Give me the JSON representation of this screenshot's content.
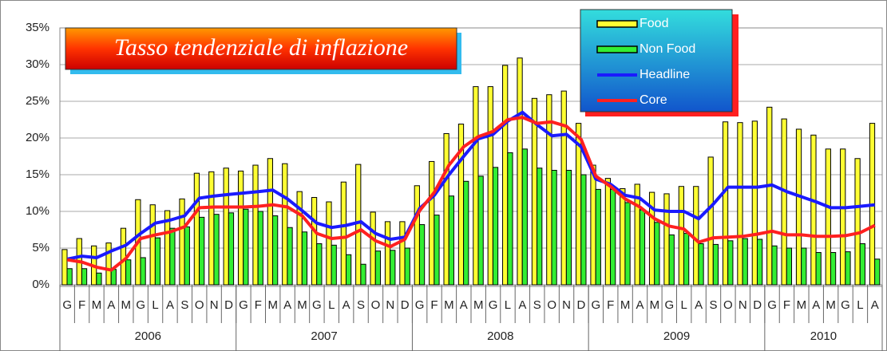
{
  "chart_data": {
    "type": "bar-line",
    "title": "Tasso tendenziale di inflazione",
    "category_groups": [
      {
        "name": "2006",
        "months": [
          "G",
          "F",
          "M",
          "A",
          "M",
          "G",
          "L",
          "A",
          "S",
          "O",
          "N",
          "D"
        ]
      },
      {
        "name": "2007",
        "months": [
          "G",
          "F",
          "M",
          "A",
          "M",
          "G",
          "L",
          "A",
          "S",
          "O",
          "N",
          "D"
        ]
      },
      {
        "name": "2008",
        "months": [
          "G",
          "F",
          "M",
          "A",
          "M",
          "G",
          "L",
          "A",
          "S",
          "O",
          "N",
          "D"
        ]
      },
      {
        "name": "2009",
        "months": [
          "G",
          "F",
          "M",
          "A",
          "M",
          "G",
          "L",
          "A",
          "S",
          "O",
          "N",
          "D"
        ]
      },
      {
        "name": "2010",
        "months": [
          "G",
          "F",
          "M",
          "A",
          "M",
          "G",
          "L",
          "A"
        ]
      }
    ],
    "series": [
      {
        "name": "Food",
        "kind": "bar",
        "color": "#ffff33",
        "values": [
          4.8,
          6.3,
          5.3,
          5.7,
          7.7,
          11.6,
          10.9,
          10.1,
          11.7,
          15.2,
          15.4,
          15.9,
          15.5,
          16.3,
          17.2,
          16.5,
          12.7,
          11.9,
          11.3,
          14.0,
          16.4,
          9.9,
          8.6,
          8.6,
          13.5,
          16.8,
          20.6,
          21.9,
          27.0,
          27.0,
          29.9,
          30.9,
          25.4,
          25.9,
          26.4,
          22.0,
          16.3,
          14.5,
          13.1,
          13.7,
          12.6,
          12.4,
          13.4,
          13.4,
          17.4,
          22.2,
          22.1,
          22.3,
          24.2,
          22.6,
          21.2,
          20.4,
          18.5,
          18.5,
          17.2,
          22.0
        ]
      },
      {
        "name": "Non Food",
        "kind": "bar",
        "color": "#33ee33",
        "values": [
          2.2,
          2.2,
          1.6,
          2.1,
          3.4,
          3.7,
          6.4,
          7.7,
          7.9,
          9.2,
          9.6,
          9.8,
          10.3,
          10.0,
          9.4,
          7.8,
          7.2,
          5.6,
          5.4,
          4.1,
          2.8,
          4.6,
          4.7,
          5.0,
          8.2,
          9.5,
          12.1,
          14.1,
          14.8,
          16.0,
          18.0,
          18.5,
          15.9,
          15.6,
          15.6,
          15.0,
          13.0,
          13.0,
          11.2,
          10.2,
          8.5,
          6.8,
          7.0,
          5.6,
          5.5,
          6.0,
          6.3,
          6.2,
          5.3,
          5.0,
          5.0,
          4.4,
          4.4,
          4.5,
          5.6,
          3.5
        ]
      },
      {
        "name": "Headline",
        "kind": "line",
        "color": "#1a1aff",
        "values": [
          3.5,
          3.9,
          3.7,
          4.6,
          5.4,
          7.0,
          8.4,
          8.8,
          9.4,
          11.8,
          12.1,
          12.3,
          12.5,
          12.7,
          12.9,
          11.7,
          10.1,
          8.4,
          7.8,
          8.1,
          8.6,
          7.0,
          6.2,
          6.5,
          10.4,
          12.2,
          15.0,
          17.5,
          19.9,
          20.5,
          22.3,
          23.5,
          21.8,
          20.3,
          20.5,
          18.8,
          14.4,
          13.7,
          12.2,
          11.8,
          10.2,
          10.0,
          10.0,
          9.0,
          11.0,
          13.3,
          13.3,
          13.3,
          13.6,
          12.7,
          12.0,
          11.3,
          10.5,
          10.5,
          10.7,
          10.9
        ]
      },
      {
        "name": "Core",
        "kind": "line",
        "color": "#ff2020",
        "values": [
          3.4,
          3.1,
          2.4,
          2.0,
          3.6,
          6.3,
          6.8,
          7.2,
          7.9,
          10.5,
          10.6,
          10.6,
          10.6,
          10.7,
          10.9,
          10.6,
          9.4,
          7.0,
          6.3,
          6.5,
          7.5,
          6.0,
          5.2,
          6.2,
          10.1,
          12.6,
          16.3,
          18.8,
          20.2,
          20.9,
          22.5,
          22.8,
          22.0,
          22.2,
          21.6,
          19.8,
          14.8,
          13.4,
          11.7,
          10.6,
          9.0,
          8.0,
          7.6,
          5.8,
          6.4,
          6.5,
          6.6,
          6.9,
          7.3,
          6.8,
          6.8,
          6.6,
          6.6,
          6.7,
          7.1,
          8.1
        ]
      }
    ],
    "ylim": [
      0,
      35
    ],
    "yticks": [
      {
        "value": 0,
        "label": "0%"
      },
      {
        "value": 5,
        "label": "5%"
      },
      {
        "value": 10,
        "label": "10%"
      },
      {
        "value": 15,
        "label": "15%"
      },
      {
        "value": 20,
        "label": "20%"
      },
      {
        "value": 25,
        "label": "25%"
      },
      {
        "value": 30,
        "label": "30%"
      },
      {
        "value": 35,
        "label": "35%"
      }
    ],
    "grid": true
  }
}
